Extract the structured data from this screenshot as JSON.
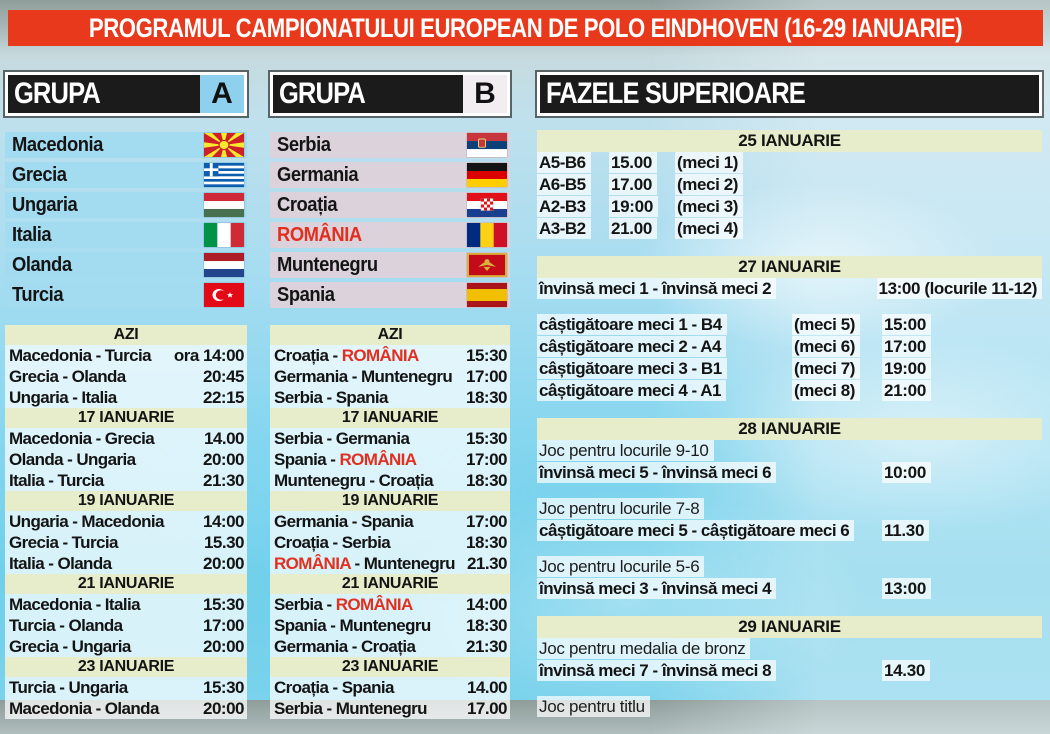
{
  "title": "PROGRAMUL CAMPIONATULUI EUROPEAN DE POLO EINDHOVEN (16-29 IANUARIE)",
  "colors": {
    "header_red": "#e8391c",
    "date_bar": "#e7ecca",
    "romania_red": "#e1301f",
    "row_a": "#a3dcf1",
    "row_b": "#dcd2dc",
    "letter_a": "#8ed1ef",
    "letter_b": "#f2edf0"
  },
  "groups": [
    {
      "label": "GRUPA",
      "letter": "A",
      "teams": [
        {
          "name": "Macedonia",
          "flag": "macedonia"
        },
        {
          "name": "Grecia",
          "flag": "greece"
        },
        {
          "name": "Ungaria",
          "flag": "hungary"
        },
        {
          "name": "Italia",
          "flag": "italy"
        },
        {
          "name": "Olanda",
          "flag": "netherlands"
        },
        {
          "name": "Turcia",
          "flag": "turkey"
        }
      ],
      "schedule": [
        {
          "date": "AZI",
          "matches": [
            {
              "home": "Macedonia",
              "away": "Turcia",
              "time": "ora 14:00"
            },
            {
              "home": "Grecia",
              "away": "Olanda",
              "time": "20:45"
            },
            {
              "home": "Ungaria",
              "away": "Italia",
              "time": "22:15"
            }
          ]
        },
        {
          "date": "17 IANUARIE",
          "matches": [
            {
              "home": "Macedonia",
              "away": "Grecia",
              "time": "14.00"
            },
            {
              "home": "Olanda",
              "away": "Ungaria",
              "time": "20:00"
            },
            {
              "home": "Italia",
              "away": "Turcia",
              "time": "21:30"
            }
          ]
        },
        {
          "date": "19 IANUARIE",
          "matches": [
            {
              "home": "Ungaria",
              "away": "Macedonia",
              "time": "14:00"
            },
            {
              "home": "Grecia",
              "away": "Turcia",
              "time": "15.30"
            },
            {
              "home": "Italia",
              "away": "Olanda",
              "time": "20:00"
            }
          ]
        },
        {
          "date": "21 IANUARIE",
          "matches": [
            {
              "home": "Macedonia",
              "away": "Italia",
              "time": "15:30"
            },
            {
              "home": "Turcia",
              "away": "Olanda",
              "time": "17:00"
            },
            {
              "home": "Grecia",
              "away": "Ungaria",
              "time": "20:00"
            }
          ]
        },
        {
          "date": "23 IANUARIE",
          "matches": [
            {
              "home": "Turcia",
              "away": "Ungaria",
              "time": "15:30"
            },
            {
              "home": "Macedonia",
              "away": "Olanda",
              "time": "20:00"
            }
          ]
        }
      ]
    },
    {
      "label": "GRUPA",
      "letter": "B",
      "teams": [
        {
          "name": "Serbia",
          "flag": "serbia"
        },
        {
          "name": "Germania",
          "flag": "germany"
        },
        {
          "name": "Croația",
          "flag": "croatia"
        },
        {
          "name": "ROMÂNIA",
          "flag": "romania"
        },
        {
          "name": "Muntenegru",
          "flag": "montenegro"
        },
        {
          "name": "Spania",
          "flag": "spain"
        }
      ],
      "schedule": [
        {
          "date": "AZI",
          "matches": [
            {
              "home": "Croația",
              "away": "ROMÂNIA",
              "time": "15:30"
            },
            {
              "home": "Germania",
              "away": "Muntenegru",
              "time": "17:00"
            },
            {
              "home": "Serbia",
              "away": "Spania",
              "time": "18:30"
            }
          ]
        },
        {
          "date": "17 IANUARIE",
          "matches": [
            {
              "home": "Serbia",
              "away": "Germania",
              "time": "15:30"
            },
            {
              "home": "Spania",
              "away": "ROMÂNIA",
              "time": "17:00"
            },
            {
              "home": "Muntenegru",
              "away": "Croația",
              "time": "18:30"
            }
          ]
        },
        {
          "date": "19 IANUARIE",
          "matches": [
            {
              "home": "Germania",
              "away": "Spania",
              "time": "17:00"
            },
            {
              "home": "Croația",
              "away": "Serbia",
              "time": "18:30"
            },
            {
              "home": "ROMÂNIA",
              "away": "Muntenegru",
              "time": "21.30"
            }
          ]
        },
        {
          "date": "21 IANUARIE",
          "matches": [
            {
              "home": "Serbia",
              "away": "ROMÂNIA",
              "time": "14:00"
            },
            {
              "home": "Spania",
              "away": "Muntenegru",
              "time": "18:30"
            },
            {
              "home": "Germania",
              "away": "Croația",
              "time": "21:30"
            }
          ]
        },
        {
          "date": "23 IANUARIE",
          "matches": [
            {
              "home": "Croația",
              "away": "Spania",
              "time": "14.00"
            },
            {
              "home": "Serbia",
              "away": "Muntenegru",
              "time": "17.00"
            }
          ]
        }
      ]
    }
  ],
  "phases": {
    "title": "FAZELE SUPERIOARE",
    "sections": [
      {
        "date": "25 IANUARIE",
        "rows": [
          {
            "type": "codes",
            "code": "A5-B6",
            "time": "15.00",
            "note": "(meci 1)"
          },
          {
            "type": "codes",
            "code": "A6-B5",
            "time": "17.00",
            "note": "(meci 2)"
          },
          {
            "type": "codes",
            "code": "A2-B3",
            "time": "19:00",
            "note": "(meci 3)"
          },
          {
            "type": "codes",
            "code": "A3-B2",
            "time": "21.00",
            "note": "(meci 4)"
          }
        ]
      },
      {
        "date": "27 IANUARIE",
        "rows": [
          {
            "type": "wide",
            "left": "învinsă meci 1 - învinsă meci 2",
            "right": "13:00 (locurile 11-12)"
          },
          {
            "type": "spacer"
          },
          {
            "type": "meci",
            "left": "câștigătoare meci 1 - B4",
            "note": "(meci 5)",
            "time": "15:00"
          },
          {
            "type": "meci",
            "left": "câștigătoare meci 2 - A4",
            "note": "(meci 6)",
            "time": "17:00"
          },
          {
            "type": "meci",
            "left": "câștigătoare meci 3 - B1",
            "note": "(meci 7)",
            "time": "19:00"
          },
          {
            "type": "meci",
            "left": "câștigătoare meci 4 - A1",
            "note": "(meci 8)",
            "time": "21:00"
          }
        ]
      },
      {
        "date": "28 IANUARIE",
        "rows": [
          {
            "type": "plain",
            "left": "Joc pentru locurile 9-10"
          },
          {
            "type": "bold",
            "left": "învinsă meci 5 - învinsă meci 6",
            "time": "10:00"
          },
          {
            "type": "spacer"
          },
          {
            "type": "plain",
            "left": "Joc pentru locurile 7-8"
          },
          {
            "type": "bold",
            "left": "câștigătoare meci 5 - câștigătoare meci 6",
            "time": "11.30"
          },
          {
            "type": "spacer"
          },
          {
            "type": "plain",
            "left": "Joc pentru locurile 5-6"
          },
          {
            "type": "bold",
            "left": "învinsă meci 3 - învinsă meci 4",
            "time": "13:00"
          }
        ]
      },
      {
        "date": "29 IANUARIE",
        "rows": [
          {
            "type": "plain",
            "left": "Joc pentru medalia de bronz"
          },
          {
            "type": "bold",
            "left": "învinsă meci 7 - învinsă meci 8",
            "time": "14.30"
          },
          {
            "type": "spacer"
          },
          {
            "type": "plain",
            "left": "Joc pentru titlu"
          }
        ]
      }
    ]
  }
}
